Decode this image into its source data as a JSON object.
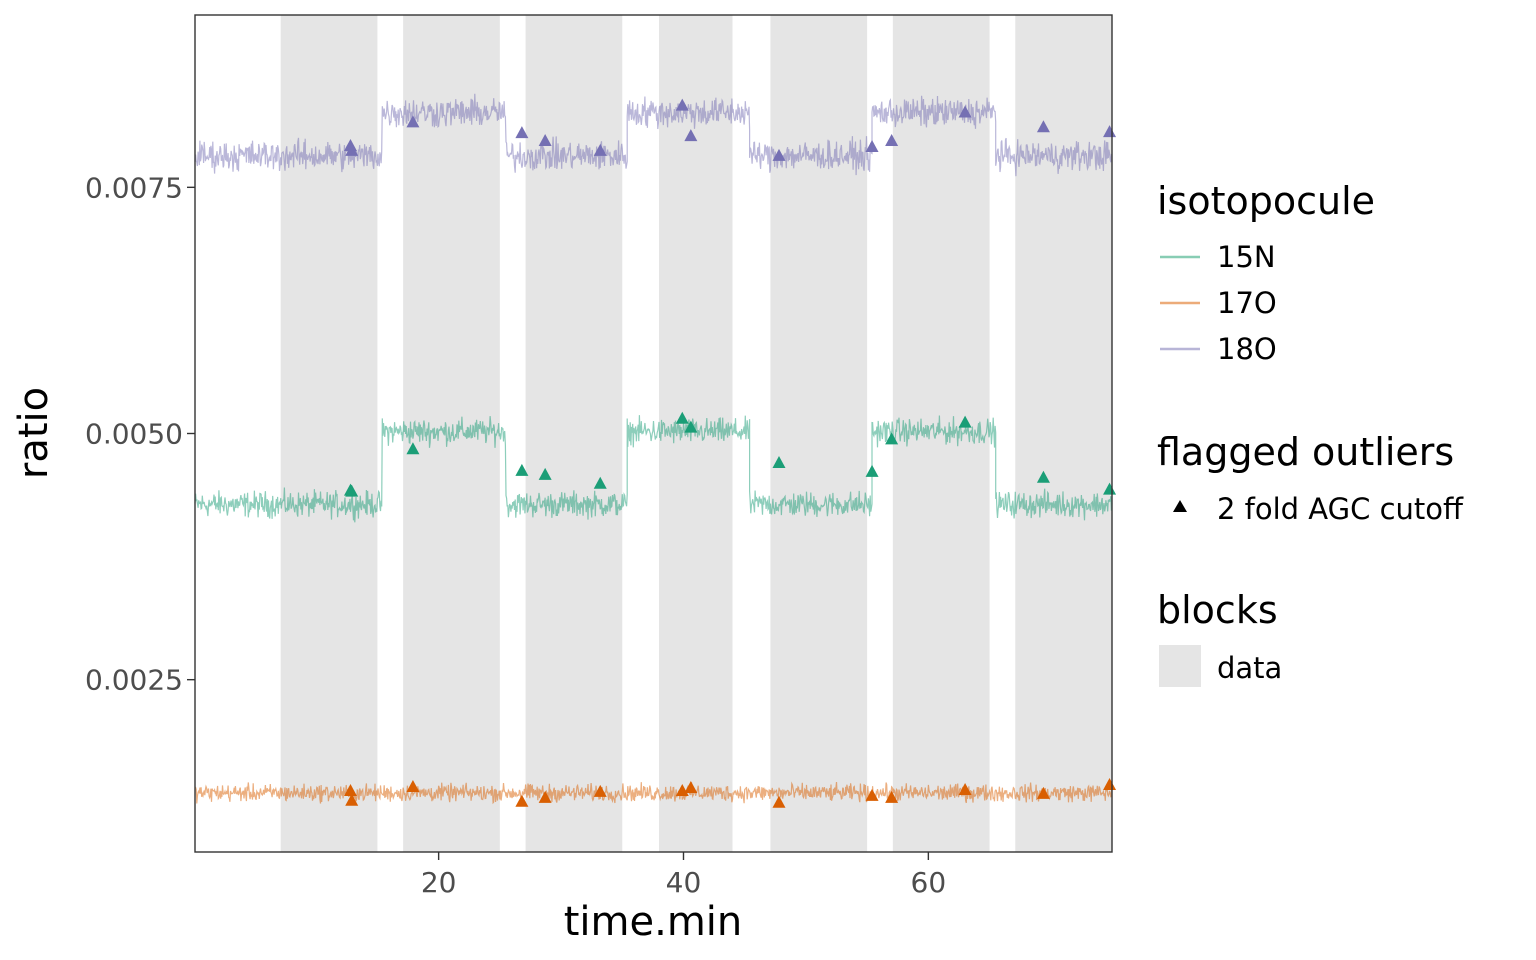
{
  "chart_data": {
    "type": "line",
    "xlabel": "time.min",
    "ylabel": "ratio",
    "xlim": [
      0.1,
      75
    ],
    "ylim": [
      0.00075,
      0.00925
    ],
    "xticks": [
      20,
      40,
      60
    ],
    "xtick_labels": [
      "20",
      "40",
      "60"
    ],
    "yticks": [
      0.0025,
      0.005,
      0.0075
    ],
    "ytick_labels": [
      "0.0025",
      "0.0050",
      "0.0075"
    ],
    "grid": false,
    "legend_position": "right",
    "blocks": [
      {
        "start": 7.1,
        "end": 15.0
      },
      {
        "start": 17.1,
        "end": 25.0
      },
      {
        "start": 27.1,
        "end": 35.0
      },
      {
        "start": 38.0,
        "end": 44.0
      },
      {
        "start": 47.1,
        "end": 55.0
      },
      {
        "start": 57.1,
        "end": 65.0
      },
      {
        "start": 67.1,
        "end": 75.0
      }
    ],
    "series": [
      {
        "name": "15N",
        "color": "#1b9e77",
        "segments": [
          {
            "x0": 0.1,
            "x1": 15.4,
            "level": 0.00428
          },
          {
            "x0": 15.4,
            "x1": 25.5,
            "level": 0.00502
          },
          {
            "x0": 25.5,
            "x1": 35.4,
            "level": 0.00428
          },
          {
            "x0": 35.4,
            "x1": 45.4,
            "level": 0.00502
          },
          {
            "x0": 45.4,
            "x1": 55.4,
            "level": 0.00428
          },
          {
            "x0": 55.4,
            "x1": 65.5,
            "level": 0.00502
          },
          {
            "x0": 65.5,
            "x1": 75.0,
            "level": 0.00428
          }
        ],
        "noise": 0.00012,
        "outliers": [
          [
            12.8,
            0.00442
          ],
          [
            12.9,
            0.00441
          ],
          [
            17.9,
            0.00484
          ],
          [
            26.8,
            0.00462
          ],
          [
            28.7,
            0.00458
          ],
          [
            33.2,
            0.00449
          ],
          [
            39.9,
            0.00515
          ],
          [
            40.6,
            0.00506
          ],
          [
            47.8,
            0.0047
          ],
          [
            55.4,
            0.00461
          ],
          [
            57.0,
            0.00494
          ],
          [
            63.0,
            0.00511
          ],
          [
            69.4,
            0.00455
          ],
          [
            74.8,
            0.00443
          ]
        ]
      },
      {
        "name": "17O",
        "color": "#d95f02",
        "segments": [
          {
            "x0": 0.1,
            "x1": 75.0,
            "level": 0.00135
          }
        ],
        "noise": 8e-05,
        "outliers": [
          [
            12.8,
            0.00137
          ],
          [
            12.9,
            0.00127
          ],
          [
            17.9,
            0.00141
          ],
          [
            26.8,
            0.00126
          ],
          [
            28.7,
            0.0013
          ],
          [
            33.2,
            0.00136
          ],
          [
            39.9,
            0.00137
          ],
          [
            40.6,
            0.0014
          ],
          [
            47.8,
            0.00125
          ],
          [
            55.4,
            0.00132
          ],
          [
            57.0,
            0.0013
          ],
          [
            63.0,
            0.00138
          ],
          [
            69.4,
            0.00134
          ],
          [
            74.8,
            0.00143
          ]
        ]
      },
      {
        "name": "18O",
        "color": "#7570b3",
        "segments": [
          {
            "x0": 0.1,
            "x1": 15.4,
            "level": 0.00782
          },
          {
            "x0": 15.4,
            "x1": 25.5,
            "level": 0.00826
          },
          {
            "x0": 25.5,
            "x1": 35.4,
            "level": 0.00782
          },
          {
            "x0": 35.4,
            "x1": 45.4,
            "level": 0.00826
          },
          {
            "x0": 45.4,
            "x1": 55.4,
            "level": 0.00782
          },
          {
            "x0": 55.4,
            "x1": 65.5,
            "level": 0.00826
          },
          {
            "x0": 65.5,
            "x1": 75.0,
            "level": 0.00782
          }
        ],
        "noise": 0.00014,
        "outliers": [
          [
            12.8,
            0.00792
          ],
          [
            12.9,
            0.00787
          ],
          [
            17.9,
            0.00816
          ],
          [
            26.8,
            0.00805
          ],
          [
            28.7,
            0.00797
          ],
          [
            33.2,
            0.00787
          ],
          [
            39.9,
            0.00833
          ],
          [
            40.6,
            0.00802
          ],
          [
            47.8,
            0.00782
          ],
          [
            55.4,
            0.00791
          ],
          [
            57.0,
            0.00797
          ],
          [
            63.0,
            0.00826
          ],
          [
            69.4,
            0.00811
          ],
          [
            74.8,
            0.00806
          ]
        ]
      }
    ]
  },
  "legend": {
    "isotopocule_title": "isotopocule",
    "isotopocule_items": [
      {
        "label": "15N",
        "color": "#88cdb4"
      },
      {
        "label": "17O",
        "color": "#ecab79"
      },
      {
        "label": "18O",
        "color": "#b8b5d7"
      }
    ],
    "outliers_title": "flagged outliers",
    "outliers_label": "2 fold AGC cutoff",
    "blocks_title": "blocks",
    "blocks_label": "data",
    "block_color": "#e5e5e5"
  }
}
